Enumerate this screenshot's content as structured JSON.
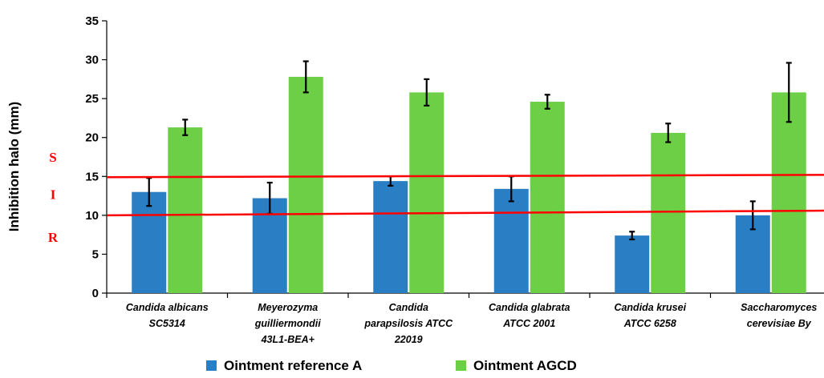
{
  "chart_data": {
    "type": "bar",
    "title": "",
    "xlabel": "",
    "ylabel": "Inhibition halo (mm)",
    "ylim": [
      0,
      35
    ],
    "yticks": [
      "0",
      "5",
      "10",
      "15",
      "20",
      "25",
      "30",
      "35"
    ],
    "grid": false,
    "legend_position": "bottom",
    "categories": [
      [
        "Candida albicans",
        "SC5314"
      ],
      [
        "Meyerozyma",
        "guilliermondii",
        "43L1-BEA+"
      ],
      [
        "Candida",
        "parapsilosis ATCC",
        "22019"
      ],
      [
        "Candida glabrata",
        "ATCC 2001"
      ],
      [
        "Candida krusei",
        "ATCC 6258"
      ],
      [
        "Saccharomyces",
        "cerevisiae By"
      ]
    ],
    "series": [
      {
        "name": "Ointment reference A",
        "color": "#2a7fc4",
        "values": [
          13.0,
          12.2,
          14.4,
          13.4,
          7.4,
          10.0
        ],
        "errors": [
          1.8,
          2.0,
          0.6,
          1.6,
          0.5,
          1.8
        ]
      },
      {
        "name": "Ointment AGCD",
        "color": "#6ccf45",
        "values": [
          21.3,
          27.8,
          25.8,
          24.6,
          20.6,
          25.8
        ],
        "errors": [
          1.0,
          2.0,
          1.7,
          0.9,
          1.2,
          3.8
        ]
      }
    ],
    "reference_lines": [
      {
        "from": 14.9,
        "to": 15.2,
        "color": "#ff0000"
      },
      {
        "from": 10.0,
        "to": 10.6,
        "color": "#ff0000"
      }
    ],
    "zone_labels": [
      {
        "text": "S",
        "y": 17.5,
        "color": "#ff0000"
      },
      {
        "text": "I",
        "y": 12.7,
        "color": "#ff0000"
      },
      {
        "text": "R",
        "y": 7.2,
        "color": "#ff0000"
      }
    ]
  }
}
